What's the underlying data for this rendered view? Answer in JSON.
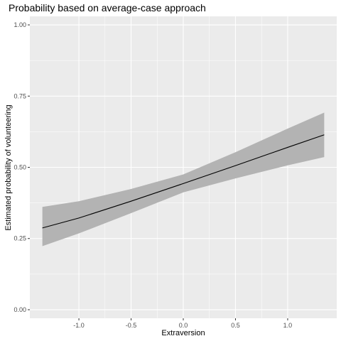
{
  "chart_data": {
    "type": "line",
    "title": "Probability based on average-case approach",
    "xlabel": "Extraversion",
    "ylabel": "Estimated probability of volunteering",
    "xlim": [
      -1.47,
      1.47
    ],
    "ylim": [
      -0.03,
      1.03
    ],
    "x_ticks": [
      -1.0,
      -0.5,
      0.0,
      0.5,
      1.0
    ],
    "x_tick_labels": [
      "-1.0",
      "-0.5",
      "0.0",
      "0.5",
      "1.0"
    ],
    "y_ticks": [
      0.0,
      0.25,
      0.5,
      0.75,
      1.0
    ],
    "y_tick_labels": [
      "0.00",
      "0.25",
      "0.50",
      "0.75",
      "1.00"
    ],
    "grid": true,
    "series": [
      {
        "x": [
          -1.35,
          -1.0,
          -0.5,
          0.0,
          0.5,
          1.0,
          1.35
        ],
        "y": [
          0.287,
          0.322,
          0.381,
          0.443,
          0.506,
          0.57,
          0.614
        ],
        "ci_lower": [
          0.223,
          0.268,
          0.339,
          0.412,
          0.461,
          0.507,
          0.536
        ],
        "ci_upper": [
          0.361,
          0.381,
          0.424,
          0.475,
          0.553,
          0.636,
          0.692
        ]
      }
    ],
    "colors": {
      "panel": "#ebebeb",
      "grid_major": "#ffffff",
      "ribbon": "#b3b3b3",
      "line": "#000000",
      "tick": "#333333"
    }
  }
}
